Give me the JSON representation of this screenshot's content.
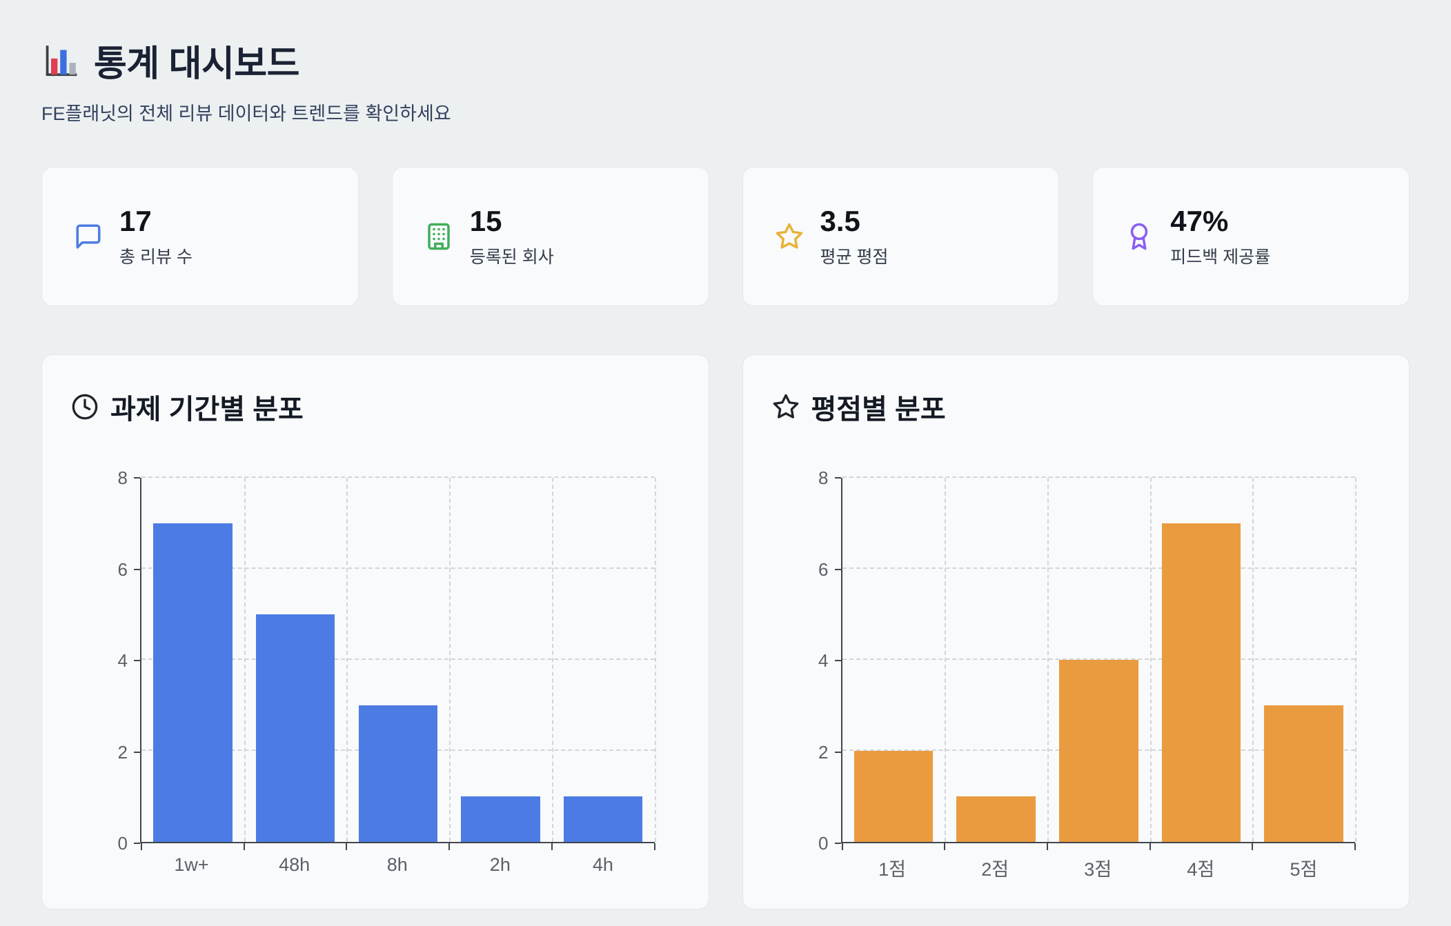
{
  "header": {
    "title": "통계 대시보드",
    "subtitle": "FE플래닛의 전체 리뷰 데이터와 트렌드를 확인하세요",
    "title_icon": "bar-chart-emoji-icon"
  },
  "stats": [
    {
      "value": "17",
      "label": "총 리뷰 수",
      "icon": "speech-bubble-icon",
      "color": "#4c7be4"
    },
    {
      "value": "15",
      "label": "등록된 회사",
      "icon": "building-icon",
      "color": "#3fae5a"
    },
    {
      "value": "3.5",
      "label": "평균 평점",
      "icon": "star-icon",
      "color": "#e8b23a"
    },
    {
      "value": "47%",
      "label": "피드백 제공률",
      "icon": "award-ribbon-icon",
      "color": "#8b5cf6"
    }
  ],
  "chart_data": [
    {
      "type": "bar",
      "title": "과제 기간별 분포",
      "title_icon": "clock-icon",
      "categories": [
        "1w+",
        "48h",
        "8h",
        "2h",
        "4h"
      ],
      "values": [
        7,
        5,
        3,
        1,
        1
      ],
      "ylim": [
        0,
        8
      ],
      "yticks": [
        0,
        2,
        4,
        6,
        8
      ],
      "bar_color": "#4c7be4",
      "grid": "dashed",
      "legend": "none",
      "xlabel": "",
      "ylabel": ""
    },
    {
      "type": "bar",
      "title": "평점별 분포",
      "title_icon": "star-outline-icon",
      "categories": [
        "1점",
        "2점",
        "3점",
        "4점",
        "5점"
      ],
      "values": [
        2,
        1,
        4,
        7,
        3
      ],
      "ylim": [
        0,
        8
      ],
      "yticks": [
        0,
        2,
        4,
        6,
        8
      ],
      "bar_color": "#ea9b3f",
      "grid": "dashed",
      "legend": "none",
      "xlabel": "",
      "ylabel": ""
    }
  ]
}
